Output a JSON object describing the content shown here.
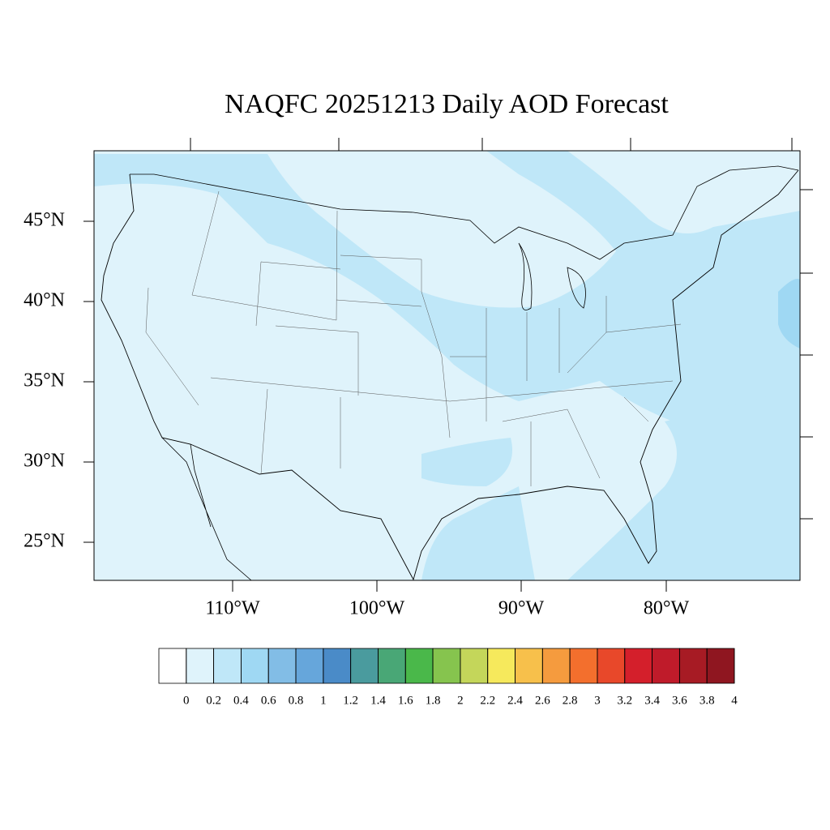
{
  "title": "NAQFC 20251213 Daily AOD Forecast",
  "latitude_labels": [
    "45°N",
    "40°N",
    "35°N",
    "30°N",
    "25°N"
  ],
  "longitude_labels": [
    "110°W",
    "100°W",
    "90°W",
    "80°W"
  ],
  "colorbar": {
    "ticks": [
      0,
      0.2,
      0.4,
      0.6,
      0.8,
      1,
      1.2,
      1.4,
      1.6,
      1.8,
      2,
      2.2,
      2.4,
      2.6,
      2.8,
      3,
      3.2,
      3.4,
      3.6,
      3.8,
      4
    ],
    "colors": [
      "#ffffff",
      "#dff3fb",
      "#bfe7f8",
      "#9fd8f3",
      "#82bde6",
      "#66a6db",
      "#4a8bc8",
      "#4a9b9e",
      "#49a776",
      "#4ab84a",
      "#86c44e",
      "#c4d65a",
      "#f6e95c",
      "#f7c04b",
      "#f59b3e",
      "#f36f2d",
      "#e8482a",
      "#d41f2b",
      "#bf1b2a",
      "#a71b24",
      "#8f1620"
    ]
  }
}
